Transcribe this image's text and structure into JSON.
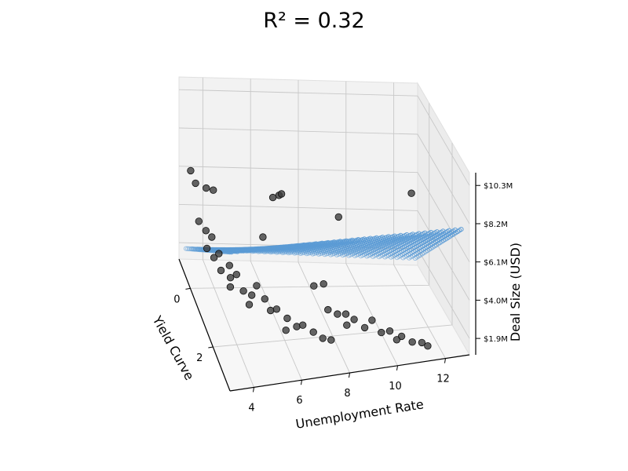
{
  "chart_data": {
    "type": "scatter",
    "title": "R² = 0.32",
    "xlabel": "Unemployment Rate",
    "ylabel": "Yield Curve",
    "zlabel": "Deal Size (USD)",
    "x_ticks": [
      "4",
      "6",
      "8",
      "10",
      "12"
    ],
    "y_ticks": [
      "0",
      "2"
    ],
    "z_ticks": [
      "$1.9M",
      "$4.0M",
      "$6.1M",
      "$8.2M",
      "$10.3M"
    ],
    "xlim": [
      3,
      13
    ],
    "ylim": [
      -1,
      3.5
    ],
    "zlim": [
      1,
      11
    ],
    "grid": true,
    "plane": {
      "color": "#5b9bd5",
      "x_range": [
        3.2,
        12.8
      ],
      "y_range": [
        -0.8,
        3.2
      ],
      "z_at_corners": {
        "x_min_y_min": 1.9,
        "x_max_y_min": 1.6,
        "x_min_y_max": 8.1,
        "x_max_y_max": 7.6
      }
    },
    "points": [
      {
        "x": 3.3,
        "y": -0.6,
        "z": 6.5
      },
      {
        "x": 3.6,
        "y": -0.8,
        "z": 5.5
      },
      {
        "x": 4.0,
        "y": -0.7,
        "z": 5.4
      },
      {
        "x": 4.2,
        "y": -0.5,
        "z": 5.6
      },
      {
        "x": 3.5,
        "y": -0.3,
        "z": 4.2
      },
      {
        "x": 3.7,
        "y": -0.1,
        "z": 4.0
      },
      {
        "x": 3.9,
        "y": 0.0,
        "z": 3.8
      },
      {
        "x": 3.6,
        "y": 0.2,
        "z": 3.5
      },
      {
        "x": 3.8,
        "y": 0.4,
        "z": 3.3
      },
      {
        "x": 4.1,
        "y": 0.2,
        "z": 3.2
      },
      {
        "x": 4.4,
        "y": 0.5,
        "z": 3.0
      },
      {
        "x": 4.0,
        "y": 0.6,
        "z": 2.9
      },
      {
        "x": 4.3,
        "y": 0.8,
        "z": 2.8
      },
      {
        "x": 4.6,
        "y": 0.7,
        "z": 2.8
      },
      {
        "x": 4.2,
        "y": 1.0,
        "z": 2.6
      },
      {
        "x": 4.7,
        "y": 1.1,
        "z": 2.5
      },
      {
        "x": 5.0,
        "y": 1.2,
        "z": 2.4
      },
      {
        "x": 5.3,
        "y": 1.0,
        "z": 2.6
      },
      {
        "x": 5.5,
        "y": 1.3,
        "z": 2.3
      },
      {
        "x": 4.8,
        "y": 1.4,
        "z": 2.2
      },
      {
        "x": 5.6,
        "y": 1.6,
        "z": 2.1
      },
      {
        "x": 5.9,
        "y": 1.5,
        "z": 2.0
      },
      {
        "x": 6.2,
        "y": 1.8,
        "z": 1.9
      },
      {
        "x": 6.5,
        "y": 2.0,
        "z": 1.7
      },
      {
        "x": 6.0,
        "y": 2.1,
        "z": 1.7
      },
      {
        "x": 6.8,
        "y": 1.9,
        "z": 1.6
      },
      {
        "x": 7.1,
        "y": 2.2,
        "z": 1.6
      },
      {
        "x": 7.4,
        "y": 2.4,
        "z": 1.5
      },
      {
        "x": 7.7,
        "y": 2.5,
        "z": 1.5
      },
      {
        "x": 5.8,
        "y": 0.5,
        "z": 4.5
      },
      {
        "x": 6.6,
        "y": -0.3,
        "z": 5.5
      },
      {
        "x": 7.0,
        "y": -0.6,
        "z": 5.2
      },
      {
        "x": 7.2,
        "y": -0.8,
        "z": 5.0
      },
      {
        "x": 9.4,
        "y": -0.4,
        "z": 4.3
      },
      {
        "x": 8.0,
        "y": 1.6,
        "z": 1.9
      },
      {
        "x": 8.3,
        "y": 1.8,
        "z": 1.9
      },
      {
        "x": 8.6,
        "y": 1.9,
        "z": 2.0
      },
      {
        "x": 8.9,
        "y": 2.0,
        "z": 1.8
      },
      {
        "x": 8.5,
        "y": 2.2,
        "z": 1.8
      },
      {
        "x": 9.2,
        "y": 2.3,
        "z": 1.7
      },
      {
        "x": 9.6,
        "y": 2.1,
        "z": 1.8
      },
      {
        "x": 9.8,
        "y": 2.5,
        "z": 1.6
      },
      {
        "x": 10.2,
        "y": 2.4,
        "z": 1.5
      },
      {
        "x": 10.6,
        "y": 2.6,
        "z": 1.4
      },
      {
        "x": 10.3,
        "y": 2.8,
        "z": 1.5
      },
      {
        "x": 10.9,
        "y": 2.9,
        "z": 1.4
      },
      {
        "x": 11.3,
        "y": 2.9,
        "z": 1.3
      },
      {
        "x": 11.5,
        "y": 3.0,
        "z": 1.2
      },
      {
        "x": 7.6,
        "y": 1.2,
        "z": 2.7
      },
      {
        "x": 8.1,
        "y": 1.0,
        "z": 2.5
      },
      {
        "x": 12.5,
        "y": -0.5,
        "z": 5.5
      }
    ]
  }
}
